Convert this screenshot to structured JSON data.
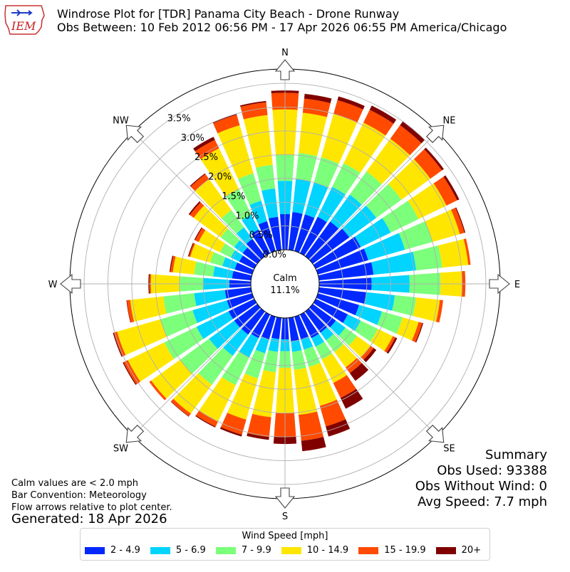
{
  "header": {
    "title_line1": "Windrose Plot for [TDR] Panama City Beach - Drone Runway",
    "title_line2": "Obs Between: 10 Feb 2012 06:56 PM - 17 Apr 2026 06:55 PM America/Chicago",
    "logo_text": "IEM"
  },
  "notes": {
    "calm": "Calm values are < 2.0 mph",
    "bar_convention": "Bar Convention: Meteorology",
    "flow": "Flow arrows relative to plot center.",
    "generated": "Generated: 18 Apr 2026"
  },
  "summary": {
    "title": "Summary",
    "obs_used": "Obs Used: 93388",
    "obs_without_wind": "Obs Without Wind: 0",
    "avg_speed": "Avg Speed: 7.7 mph"
  },
  "center": {
    "label": "Calm",
    "value": "11.1%"
  },
  "legend": {
    "title": "Wind Speed [mph]",
    "items": [
      {
        "label": "2 - 4.9",
        "color": "#0028ff"
      },
      {
        "label": "5 - 6.9",
        "color": "#00d4ff"
      },
      {
        "label": "7 - 9.9",
        "color": "#7cff7a"
      },
      {
        "label": "10 - 14.9",
        "color": "#ffe600"
      },
      {
        "label": "15 - 19.9",
        "color": "#ff4a00"
      },
      {
        "label": "20+",
        "color": "#800000"
      }
    ]
  },
  "chart_data": {
    "type": "windrose",
    "bar_convention": "meteorology",
    "radial_unit": "%",
    "radial_ticks": [
      "0.0%",
      "0.5%",
      "1.0%",
      "1.5%",
      "2.0%",
      "2.5%",
      "3.0%",
      "3.5%"
    ],
    "radial_tick_values": [
      0,
      0.5,
      1.0,
      1.5,
      2.0,
      2.5,
      3.0,
      3.5
    ],
    "rmax": 3.8,
    "direction_labels": [
      "N",
      "NE",
      "E",
      "SE",
      "S",
      "SW",
      "W",
      "NW"
    ],
    "direction_label_angles": [
      0,
      45,
      90,
      135,
      180,
      225,
      270,
      315
    ],
    "calm_percent": 11.1,
    "speed_bins": [
      "2 - 4.9",
      "5 - 6.9",
      "7 - 9.9",
      "10 - 14.9",
      "15 - 19.9",
      "20+"
    ],
    "colors": [
      "#0028ff",
      "#00d4ff",
      "#7cff7a",
      "#ffe600",
      "#ff4a00",
      "#800000"
    ],
    "directions_deg": [
      0,
      10,
      20,
      30,
      40,
      50,
      60,
      70,
      80,
      90,
      100,
      110,
      120,
      130,
      140,
      150,
      160,
      170,
      180,
      190,
      200,
      210,
      220,
      230,
      240,
      250,
      260,
      270,
      280,
      290,
      300,
      310,
      320,
      330,
      340,
      350
    ],
    "cumulative": [
      [
        0.75,
        1.45,
        2.0,
        2.95,
        3.3,
        3.35
      ],
      [
        0.8,
        1.5,
        2.05,
        2.9,
        3.2,
        3.3
      ],
      [
        0.8,
        1.5,
        2.05,
        3.0,
        3.3,
        3.38
      ],
      [
        0.85,
        1.55,
        2.1,
        3.05,
        3.35,
        3.45
      ],
      [
        0.9,
        1.6,
        2.2,
        3.05,
        3.4,
        3.5
      ],
      [
        0.95,
        1.65,
        2.3,
        3.05,
        3.35,
        3.4
      ],
      [
        1.05,
        1.75,
        2.4,
        3.05,
        3.3,
        3.35
      ],
      [
        1.1,
        1.9,
        2.5,
        3.1,
        3.2,
        3.22
      ],
      [
        1.15,
        2.05,
        2.6,
        3.15,
        3.2,
        3.2
      ],
      [
        1.1,
        1.9,
        2.55,
        3.0,
        3.07,
        3.07
      ],
      [
        1.0,
        1.6,
        2.05,
        2.55,
        2.62,
        2.62
      ],
      [
        0.9,
        1.4,
        1.85,
        2.2,
        2.28,
        2.3
      ],
      [
        0.75,
        1.05,
        1.45,
        1.8,
        1.86,
        1.9
      ],
      [
        0.6,
        0.85,
        1.15,
        1.5,
        1.58,
        1.65
      ],
      [
        0.55,
        0.75,
        1.05,
        1.45,
        1.6,
        1.8
      ],
      [
        0.55,
        0.75,
        1.05,
        1.6,
        1.95,
        2.2
      ],
      [
        0.5,
        0.72,
        1.1,
        1.95,
        2.4,
        2.62
      ],
      [
        0.5,
        0.72,
        1.1,
        2.05,
        2.6,
        2.82
      ],
      [
        0.45,
        0.7,
        1.05,
        2.0,
        2.5,
        2.65
      ],
      [
        0.45,
        0.72,
        1.15,
        2.1,
        2.52,
        2.58
      ],
      [
        0.5,
        0.8,
        1.35,
        2.25,
        2.58,
        2.62
      ],
      [
        0.55,
        1.0,
        1.65,
        2.5,
        2.62,
        2.64
      ],
      [
        0.6,
        1.15,
        1.9,
        2.65,
        2.72,
        2.73
      ],
      [
        0.6,
        1.25,
        2.0,
        2.75,
        2.8,
        2.8
      ],
      [
        0.6,
        1.35,
        2.1,
        2.95,
        3.05,
        3.07
      ],
      [
        0.55,
        1.3,
        2.0,
        2.95,
        3.02,
        3.04
      ],
      [
        0.55,
        1.2,
        1.85,
        2.55,
        2.62,
        2.63
      ],
      [
        0.45,
        1.0,
        1.5,
        2.1,
        2.13,
        2.15
      ],
      [
        0.4,
        0.8,
        1.2,
        1.65,
        1.7,
        1.72
      ],
      [
        0.38,
        0.65,
        0.92,
        1.35,
        1.38,
        1.4
      ],
      [
        0.35,
        0.55,
        0.8,
        1.3,
        1.38,
        1.4
      ],
      [
        0.38,
        0.6,
        0.95,
        1.65,
        1.75,
        1.78
      ],
      [
        0.45,
        0.75,
        1.2,
        2.0,
        2.13,
        2.15
      ],
      [
        0.55,
        0.9,
        1.5,
        2.45,
        2.65,
        2.72
      ],
      [
        0.65,
        1.1,
        1.7,
        2.75,
        2.98,
        3.0
      ],
      [
        0.7,
        1.3,
        1.8,
        2.85,
        3.12,
        3.15
      ]
    ]
  }
}
